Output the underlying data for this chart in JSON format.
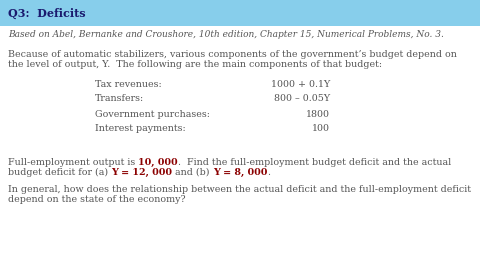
{
  "title": "Q3:  Deficits",
  "title_bg_color": "#87ceeb",
  "title_color": "#1a1a6e",
  "bg_color": "#ffffff",
  "subtitle": "Based on Abel, Bernanke and Croushore, 10th edition, Chapter 15, Numerical Problems, No. 3.",
  "para1_line1": "Because of automatic stabilizers, various components of the government’s budget depend on",
  "para1_line2": "the level of output, Y.  The following are the main components of that budget:",
  "table_labels": [
    "Tax revenues:",
    "Transfers:",
    "Government purchases:",
    "Interest payments:"
  ],
  "table_values": [
    "1000 + 0.1Y",
    "800 – 0.05Y",
    "1800",
    "100"
  ],
  "para2_line1_pre": "Full-employment output is ",
  "para2_fe": "10, 000",
  "para2_line1_post": ".  Find the full-employment budget deficit and the actual",
  "para2_line2_pre": "budget deficit for (a) ",
  "para2_ya": "Y = 12, 000",
  "para2_mid": " and (b) ",
  "para2_yb": "Y = 8, 000",
  "para2_end": ".",
  "para3_line1": "In general, how does the relationship between the actual deficit and the full-employment deficit",
  "para3_line2": "depend on the state of the economy?",
  "highlight_color": "#8b0000",
  "text_color": "#555555",
  "font_size": 6.8,
  "title_font_size": 8.0
}
